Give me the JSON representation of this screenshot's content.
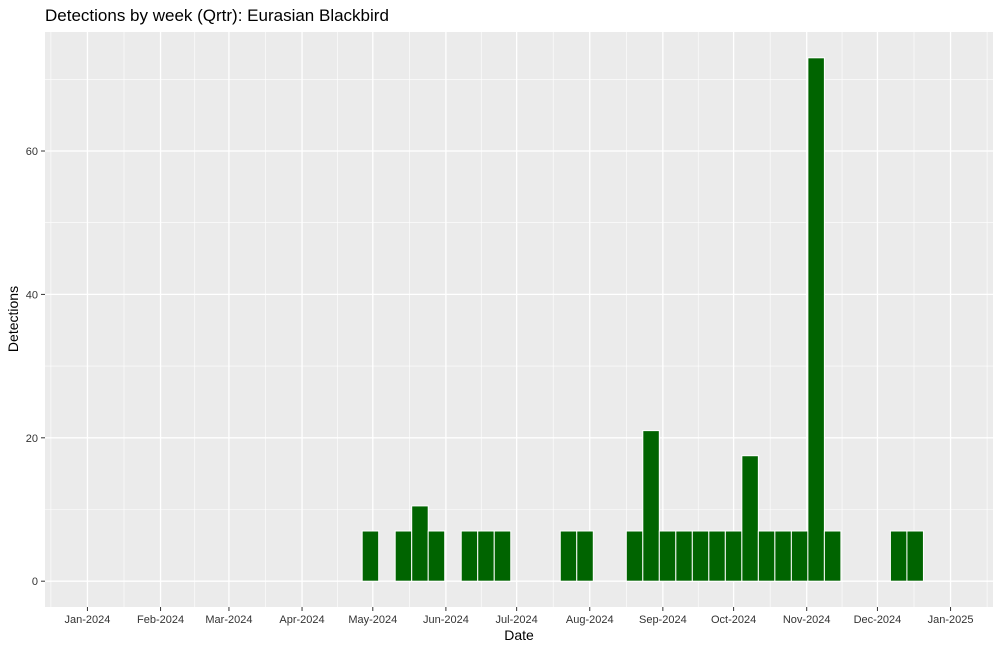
{
  "chart_data": {
    "type": "bar",
    "title": "Detections by week (Qrtr): Eurasian Blackbird",
    "xlabel": "Date",
    "ylabel": "Detections",
    "x_ticks": [
      {
        "date": "2024-01-01",
        "label": "Jan-2024"
      },
      {
        "date": "2024-02-01",
        "label": "Feb-2024"
      },
      {
        "date": "2024-03-01",
        "label": "Mar-2024"
      },
      {
        "date": "2024-04-01",
        "label": "Apr-2024"
      },
      {
        "date": "2024-05-01",
        "label": "May-2024"
      },
      {
        "date": "2024-06-01",
        "label": "Jun-2024"
      },
      {
        "date": "2024-07-01",
        "label": "Jul-2024"
      },
      {
        "date": "2024-08-01",
        "label": "Aug-2024"
      },
      {
        "date": "2024-09-01",
        "label": "Sep-2024"
      },
      {
        "date": "2024-10-01",
        "label": "Oct-2024"
      },
      {
        "date": "2024-11-01",
        "label": "Nov-2024"
      },
      {
        "date": "2024-12-01",
        "label": "Dec-2024"
      },
      {
        "date": "2025-01-01",
        "label": "Jan-2025"
      }
    ],
    "y_ticks": [
      0,
      20,
      40,
      60
    ],
    "xlim": [
      "2023-12-14",
      "2025-01-19"
    ],
    "ylim": [
      -3.6,
      76.6
    ],
    "grid": true,
    "bar_color": "#006400",
    "panel_color": "#EBEBEB",
    "bars": [
      {
        "date": "2024-04-30",
        "value": 7
      },
      {
        "date": "2024-05-14",
        "value": 7
      },
      {
        "date": "2024-05-21",
        "value": 10.5
      },
      {
        "date": "2024-05-28",
        "value": 7
      },
      {
        "date": "2024-06-11",
        "value": 7
      },
      {
        "date": "2024-06-18",
        "value": 7
      },
      {
        "date": "2024-06-25",
        "value": 7
      },
      {
        "date": "2024-07-23",
        "value": 7
      },
      {
        "date": "2024-07-30",
        "value": 7
      },
      {
        "date": "2024-08-20",
        "value": 7
      },
      {
        "date": "2024-08-27",
        "value": 21
      },
      {
        "date": "2024-09-03",
        "value": 7
      },
      {
        "date": "2024-09-10",
        "value": 7
      },
      {
        "date": "2024-09-17",
        "value": 7
      },
      {
        "date": "2024-09-24",
        "value": 7
      },
      {
        "date": "2024-10-01",
        "value": 7
      },
      {
        "date": "2024-10-08",
        "value": 17.5
      },
      {
        "date": "2024-10-15",
        "value": 7
      },
      {
        "date": "2024-10-22",
        "value": 7
      },
      {
        "date": "2024-10-29",
        "value": 7
      },
      {
        "date": "2024-11-05",
        "value": 73
      },
      {
        "date": "2024-11-12",
        "value": 7
      },
      {
        "date": "2024-12-10",
        "value": 7
      },
      {
        "date": "2024-12-17",
        "value": 7
      }
    ]
  }
}
